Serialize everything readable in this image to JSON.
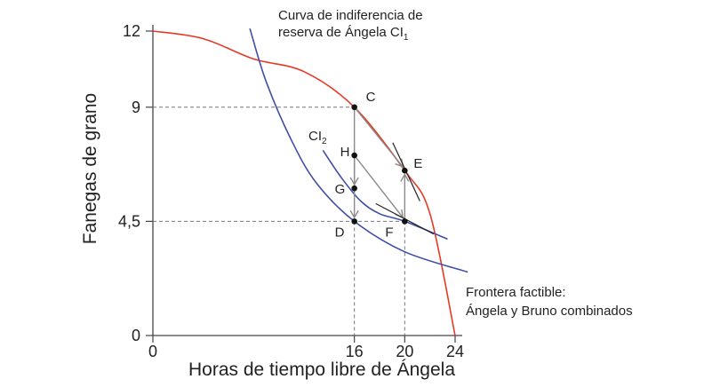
{
  "chart_data": {
    "type": "line",
    "xlabel": "Horas de tiempo libre de Ángela",
    "ylabel": "Fanegas de grano",
    "xlim": [
      0,
      24
    ],
    "ylim": [
      0,
      12
    ],
    "x_ticks": [
      {
        "value": 0,
        "label": "0"
      },
      {
        "value": 16,
        "label": "16"
      },
      {
        "value": 20,
        "label": "20"
      },
      {
        "value": 24,
        "label": "24"
      }
    ],
    "y_ticks": [
      {
        "value": 0,
        "label": "0"
      },
      {
        "value": 4.5,
        "label": "4,5"
      },
      {
        "value": 9,
        "label": "9"
      },
      {
        "value": 12,
        "label": "12"
      }
    ],
    "series": [
      {
        "name": "Frontera factible: Ángela y Bruno combinados",
        "color": "#e53a24",
        "x": [
          0,
          4,
          8,
          12,
          16,
          20,
          22,
          24
        ],
        "y": [
          12,
          11.7,
          10.9,
          10.4,
          9,
          6.5,
          4.8,
          0
        ]
      },
      {
        "name": "Curva de indiferencia de reserva de Ángela CI1",
        "color": "#3f4fa8",
        "x": [
          7.7,
          9,
          11,
          13,
          16,
          20,
          25
        ],
        "y": [
          12.1,
          10,
          7.7,
          6,
          4.5,
          3.3,
          2.5
        ]
      },
      {
        "name": "CI2",
        "color": "#3f4fa8",
        "x": [
          13.5,
          15,
          16.5,
          18,
          20,
          23.4
        ],
        "y": [
          7.3,
          6.2,
          5.3,
          4.8,
          4.5,
          3.8
        ]
      }
    ],
    "points": [
      {
        "label": "C",
        "x": 16,
        "y": 9
      },
      {
        "label": "E",
        "x": 20,
        "y": 6.5
      },
      {
        "label": "H",
        "x": 16,
        "y": 7.1
      },
      {
        "label": "G",
        "x": 16,
        "y": 5.8
      },
      {
        "label": "D",
        "x": 16,
        "y": 4.5
      },
      {
        "label": "F",
        "x": 20,
        "y": 4.5
      }
    ],
    "annotations": {
      "ci1_label_line1": "Curva de indiferencia de",
      "ci1_label_line2": "reserva de Ángela CI",
      "ci1_sub": "1",
      "ci2_label": "CI",
      "ci2_sub": "2",
      "frontier_label_line1": "Frontera factible:",
      "frontier_label_line2": "Ángela y Bruno combinados"
    },
    "grid": false
  }
}
